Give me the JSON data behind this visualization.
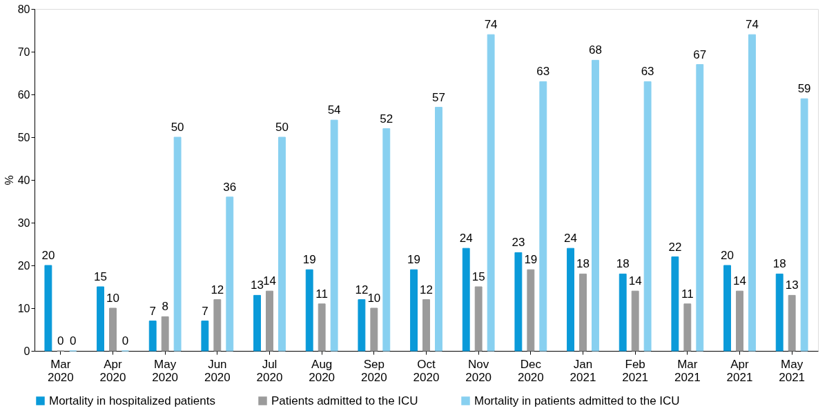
{
  "chart_data": {
    "type": "bar",
    "ylabel": "%",
    "categories": [
      "Mar 2020",
      "Apr 2020",
      "May 2020",
      "Jun 2020",
      "Jul 2020",
      "Aug 2020",
      "Sep 2020",
      "Oct 2020",
      "Nov 2020",
      "Dec 2020",
      "Jan 2021",
      "Feb 2021",
      "Mar 2021",
      "Apr 2021",
      "May 2021"
    ],
    "series": [
      {
        "name": "Mortality in hospitalized patients",
        "color": "#0a9ad9",
        "values": [
          20,
          15,
          7,
          7,
          13,
          19,
          12,
          19,
          24,
          23,
          24,
          18,
          22,
          20,
          18
        ]
      },
      {
        "name": "Patients admitted to the ICU",
        "color": "#9b9b9b",
        "values": [
          0,
          10,
          8,
          12,
          14,
          11,
          10,
          12,
          15,
          19,
          18,
          14,
          11,
          14,
          13
        ]
      },
      {
        "name": "Mortality in patients admitted to the ICU",
        "color": "#88d0f0",
        "values": [
          0,
          0,
          50,
          36,
          50,
          54,
          52,
          57,
          74,
          63,
          68,
          63,
          67,
          74,
          59
        ]
      }
    ],
    "ylim": [
      0,
      80
    ],
    "yticks": [
      0,
      10,
      20,
      30,
      40,
      50,
      60,
      70,
      80
    ],
    "data_labels": true,
    "legend": "bottom",
    "grid": false
  }
}
